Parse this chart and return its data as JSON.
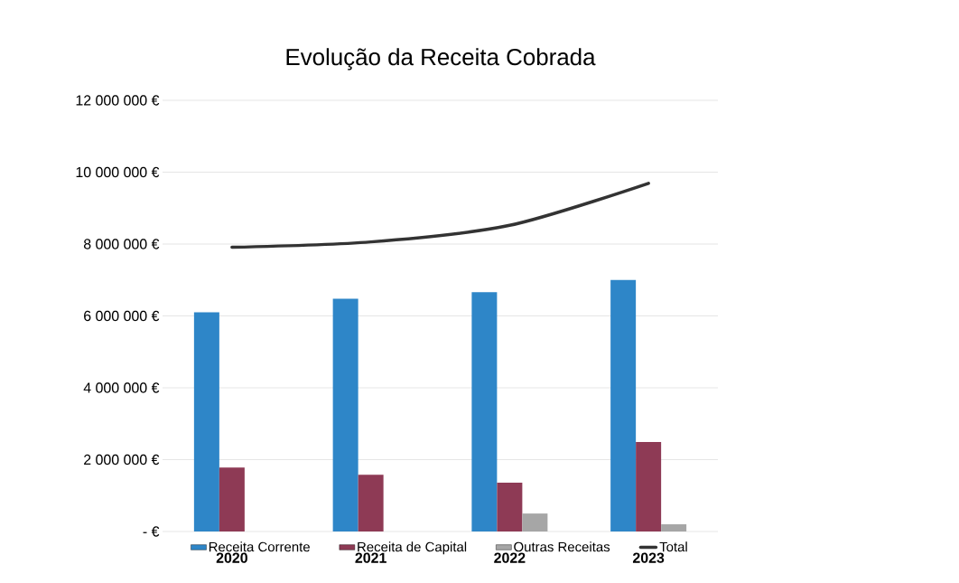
{
  "chart_data": {
    "type": "bar",
    "title": "Evolução da Receita Cobrada",
    "categories": [
      "2020",
      "2021",
      "2022",
      "2023"
    ],
    "series": [
      {
        "name": "Receita Corrente",
        "color": "#2e86c8",
        "values": [
          6100000,
          6480000,
          6660000,
          7000000
        ]
      },
      {
        "name": "Receita de Capital",
        "color": "#8e3a55",
        "values": [
          1780000,
          1580000,
          1360000,
          2490000
        ]
      },
      {
        "name": "Outras Receitas",
        "color": "#a6a6a6",
        "values": [
          0,
          0,
          500000,
          200000
        ]
      },
      {
        "name": "Total",
        "type": "line",
        "color": "#333333",
        "values": [
          7910000,
          8060000,
          8520000,
          9690000
        ]
      }
    ],
    "ylim": [
      0,
      12000000
    ],
    "yticks": [
      {
        "value": 0,
        "label": "- €"
      },
      {
        "value": 2000000,
        "label": "2 000 000 €"
      },
      {
        "value": 4000000,
        "label": "4 000 000 €"
      },
      {
        "value": 6000000,
        "label": "6 000 000 €"
      },
      {
        "value": 8000000,
        "label": "8 000 000 €"
      },
      {
        "value": 10000000,
        "label": "10 000 000 €"
      },
      {
        "value": 12000000,
        "label": "12 000 000 €"
      }
    ],
    "grid": "y",
    "legend": "bottom"
  }
}
